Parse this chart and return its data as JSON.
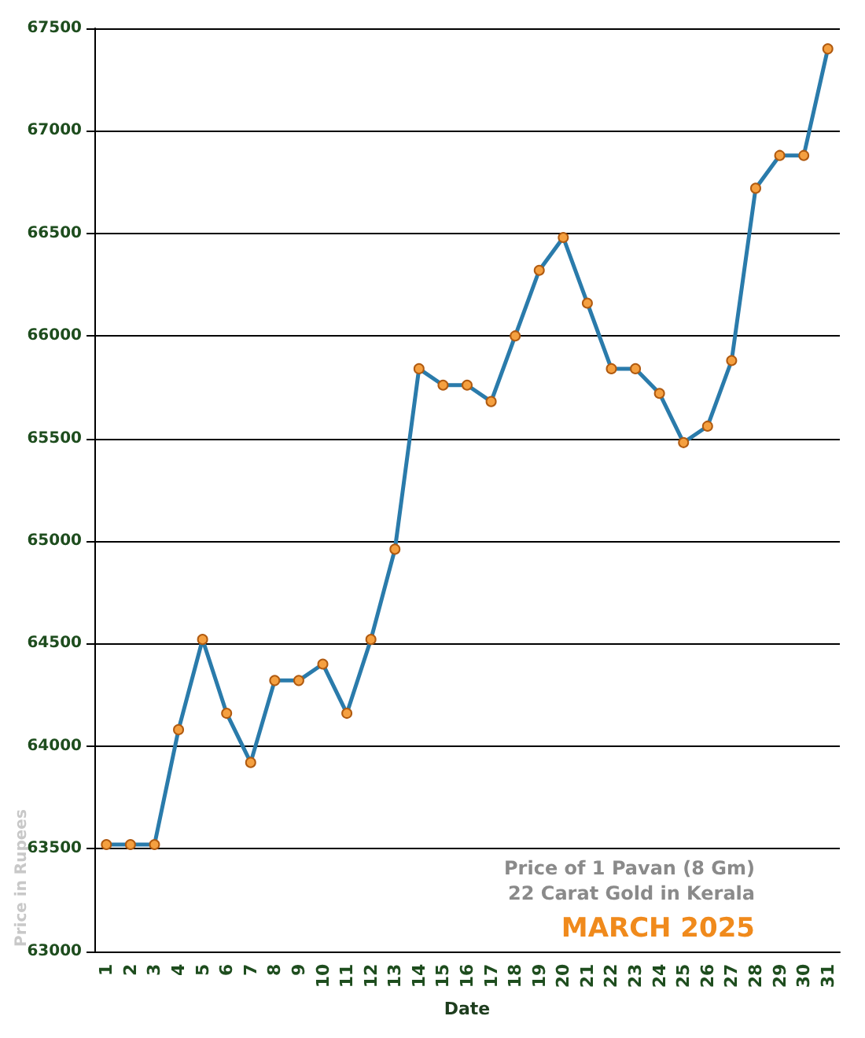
{
  "chart_data": {
    "type": "line",
    "xlabel": "Date",
    "ylabel": "Price in Rupees",
    "categories": [
      "1",
      "2",
      "3",
      "4",
      "5",
      "6",
      "7",
      "8",
      "9",
      "10",
      "11",
      "12",
      "13",
      "14",
      "15",
      "16",
      "17",
      "18",
      "19",
      "20",
      "21",
      "22",
      "23",
      "24",
      "25",
      "26",
      "27",
      "28",
      "29",
      "30",
      "31"
    ],
    "series": [
      {
        "color": "#2a7bab",
        "values": [
          63520,
          63520,
          63520,
          64080,
          64520,
          64160,
          63920,
          64320,
          64320,
          64400,
          64160,
          64520,
          64960,
          65840,
          65760,
          65760,
          65680,
          66000,
          66320,
          66480,
          66160,
          65840,
          65840,
          65720,
          65480,
          65560,
          65880,
          66720,
          66880,
          66880,
          67400
        ]
      }
    ],
    "ylim": [
      63000,
      67500
    ],
    "yticks": [
      63000,
      63500,
      64000,
      64500,
      65000,
      65500,
      66000,
      66500,
      67000,
      67500
    ],
    "grid": "y",
    "marker": "circle",
    "line_style": "solid",
    "annotations": [
      "Price of 1 Pavan (8 Gm)",
      "22 Carat Gold in Kerala",
      "MARCH 2025"
    ]
  }
}
